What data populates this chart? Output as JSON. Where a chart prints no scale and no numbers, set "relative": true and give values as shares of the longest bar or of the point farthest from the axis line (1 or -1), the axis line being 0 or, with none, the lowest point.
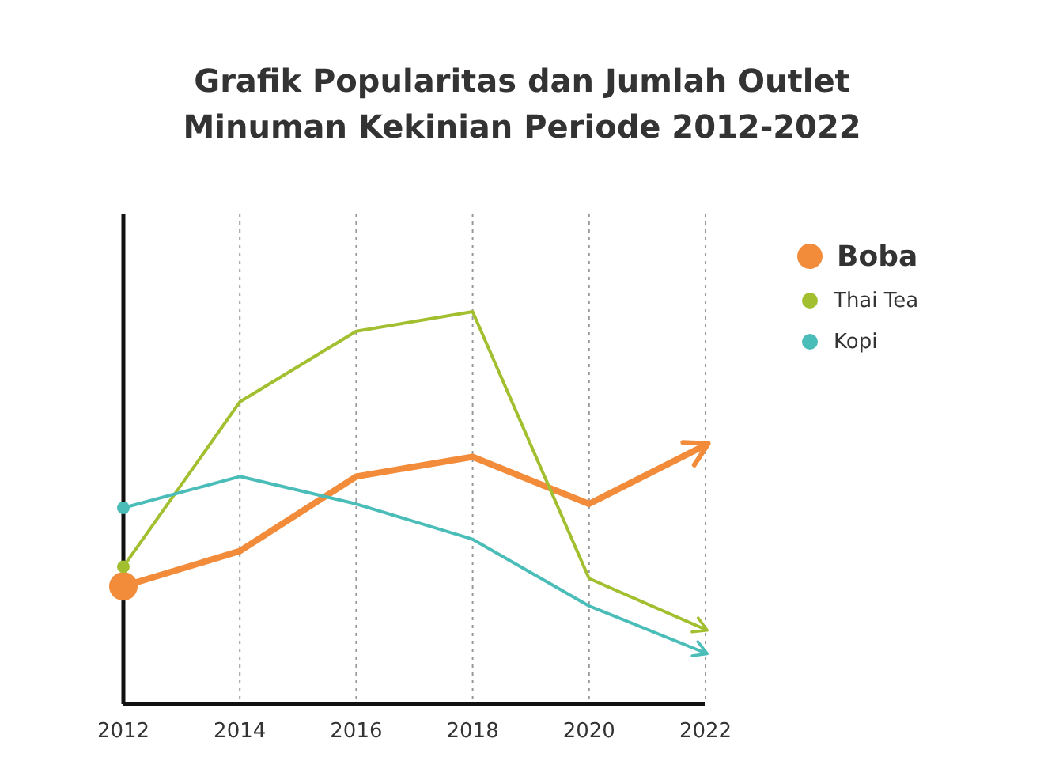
{
  "chart_data": {
    "type": "line",
    "title": "Grafik Popularitas dan Jumlah Outlet\nMinuman Kekinian Periode 2012-2022",
    "categories": [
      "2012",
      "2014",
      "2016",
      "2018",
      "2020",
      "2022"
    ],
    "relative": true,
    "grid": "x",
    "legend": "right",
    "line_style": "solid",
    "series": [
      {
        "name": "Boba",
        "color": "#f28c3a",
        "values": [
          0.3,
          0.39,
          0.58,
          0.63,
          0.51,
          0.66
        ]
      },
      {
        "name": "Thai Tea",
        "color": "#a2bf2f",
        "values": [
          0.35,
          0.77,
          0.95,
          1,
          0.32,
          0.19
        ]
      },
      {
        "name": "Kopi",
        "color": "#4bbdb8",
        "values": [
          0.5,
          0.58,
          0.51,
          0.42,
          0.25,
          0.13
        ]
      }
    ]
  }
}
